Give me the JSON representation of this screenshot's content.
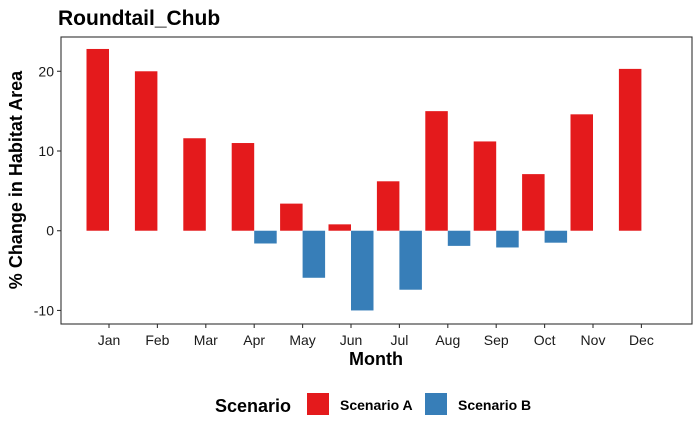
{
  "chart_data": {
    "type": "bar",
    "title": "Roundtail_Chub",
    "xlabel": "Month",
    "ylabel": "% Change in Habitat Area",
    "categories": [
      "Jan",
      "Feb",
      "Mar",
      "Apr",
      "May",
      "Jun",
      "Jul",
      "Aug",
      "Sep",
      "Oct",
      "Nov",
      "Dec"
    ],
    "series": [
      {
        "name": "Scenario A",
        "color": "#e41a1c",
        "values": [
          22.8,
          20.0,
          11.6,
          11.0,
          3.4,
          0.8,
          6.2,
          15.0,
          11.2,
          7.1,
          14.6,
          20.3
        ]
      },
      {
        "name": "Scenario B",
        "color": "#377eb8",
        "values": [
          null,
          null,
          null,
          -1.6,
          -5.9,
          -10.0,
          -7.4,
          -1.9,
          -2.1,
          -1.5,
          null,
          null
        ]
      }
    ],
    "ylim": [
      -11.7,
      24.3
    ],
    "yticks": [
      -10,
      0,
      10,
      20
    ],
    "ytick_labels": [
      "-10",
      "0",
      "10",
      "20"
    ],
    "grid": false,
    "legend": {
      "title": "Scenario",
      "position": "bottom"
    }
  }
}
